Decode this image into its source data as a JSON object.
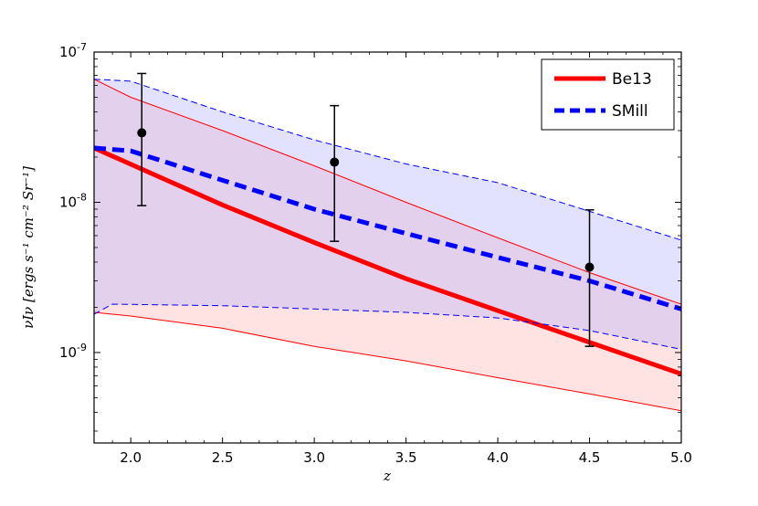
{
  "chart_data": {
    "type": "line",
    "title": "",
    "xlabel": "z",
    "ylabel": "νIν [ergs s⁻¹ cm⁻² Sr⁻¹]",
    "xlim": [
      1.8,
      5.0
    ],
    "ylim": [
      2.5e-10,
      1e-07
    ],
    "yscale": "log",
    "x_ticks": [
      2.0,
      2.5,
      3.0,
      3.5,
      4.0,
      4.5,
      5.0
    ],
    "x_tick_labels": [
      "2.0",
      "2.5",
      "3.0",
      "3.5",
      "4.0",
      "4.5",
      "5.0"
    ],
    "y_ticks": [
      1e-09,
      1e-08,
      1e-07
    ],
    "y_tick_labels": [
      {
        "base": "10",
        "exp": "-9"
      },
      {
        "base": "10",
        "exp": "-8"
      },
      {
        "base": "10",
        "exp": "-7"
      }
    ],
    "legend_position": "top-right",
    "series": [
      {
        "name": "Be13",
        "color": "#ff0000",
        "style": "solid",
        "x": [
          1.8,
          2.5,
          3.0,
          3.5,
          4.0,
          4.5,
          5.0
        ],
        "values": [
          2.3e-08,
          9.6e-09,
          5.4e-09,
          3.1e-09,
          1.9e-09,
          1.17e-09,
          7.2e-10
        ],
        "band_upper": {
          "x": [
            1.8,
            2.0,
            2.5,
            3.0,
            3.5,
            4.0,
            4.5,
            5.0
          ],
          "values": [
            6.6e-08,
            5e-08,
            3e-08,
            1.75e-08,
            1e-08,
            5.8e-09,
            3.4e-09,
            2.1e-09
          ]
        },
        "band_lower": {
          "x": [
            1.8,
            2.0,
            2.5,
            3.0,
            3.5,
            4.0,
            4.5,
            5.0
          ],
          "values": [
            1.85e-09,
            1.75e-09,
            1.45e-09,
            1.1e-09,
            8.8e-10,
            6.8e-10,
            5.3e-10,
            4.1e-10
          ]
        }
      },
      {
        "name": "SMill",
        "color": "#0000ff",
        "style": "dashed",
        "x": [
          1.8,
          2.0,
          2.5,
          3.0,
          3.5,
          4.0,
          4.5,
          5.0
        ],
        "values": [
          2.3e-08,
          2.2e-08,
          1.4e-08,
          9e-09,
          6.2e-09,
          4.3e-09,
          3e-09,
          1.95e-09
        ],
        "band_upper": {
          "x": [
            1.8,
            2.0,
            2.5,
            3.0,
            3.5,
            4.0,
            4.5,
            5.0
          ],
          "values": [
            6.6e-08,
            6.4e-08,
            4e-08,
            2.6e-08,
            1.8e-08,
            1.35e-08,
            8.7e-09,
            5.6e-09
          ]
        },
        "band_lower": {
          "x": [
            1.8,
            1.9,
            2.5,
            3.0,
            3.5,
            4.0,
            4.5,
            5.0
          ],
          "values": [
            1.8e-09,
            2.1e-09,
            2.05e-09,
            1.95e-09,
            1.85e-09,
            1.7e-09,
            1.4e-09,
            1.05e-09
          ]
        }
      }
    ],
    "observations": [
      {
        "x": 2.06,
        "y": 2.9e-08,
        "ylow": 9.5e-09,
        "yhigh": 7.2e-08
      },
      {
        "x": 3.11,
        "y": 1.85e-08,
        "ylow": 5.5e-09,
        "yhigh": 4.4e-08
      },
      {
        "x": 4.5,
        "y": 3.7e-09,
        "ylow": 1.1e-09,
        "yhigh": 8.9e-09
      }
    ],
    "colors": {
      "be13_band": "#ffb3b3",
      "smill_band": "#b3b3ff"
    }
  }
}
